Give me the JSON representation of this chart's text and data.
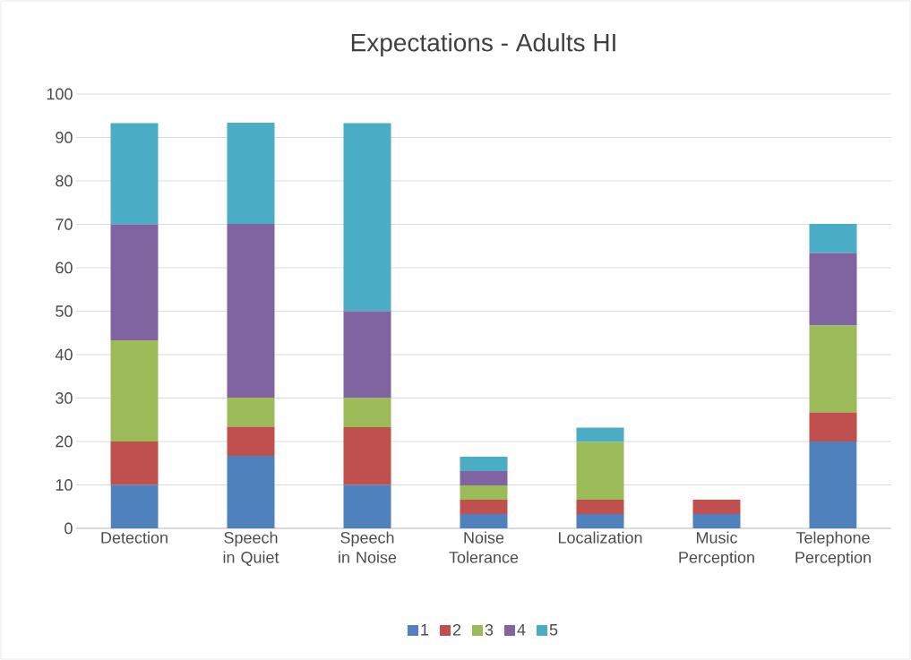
{
  "chart_data": {
    "type": "bar",
    "title": "Expectations - Adults HI",
    "stacked": true,
    "categories": [
      "Detection",
      "Speech in Quiet",
      "Speech in Noise",
      "Noise Tolerance",
      "Localization",
      "Music Perception",
      "Telephone Perception"
    ],
    "series": [
      {
        "name": "1",
        "color": "#4f81bd",
        "values": [
          10,
          16.7,
          10,
          3.3,
          3.3,
          3.3,
          20
        ]
      },
      {
        "name": "2",
        "color": "#c0504d",
        "values": [
          10,
          6.7,
          13.3,
          3.3,
          3.3,
          3.3,
          6.7
        ]
      },
      {
        "name": "3",
        "color": "#9bbb59",
        "values": [
          23.3,
          6.7,
          6.7,
          3.3,
          13.3,
          0,
          20
        ]
      },
      {
        "name": "4",
        "color": "#8064a2",
        "values": [
          26.7,
          40,
          20,
          3.3,
          0,
          0,
          16.7
        ]
      },
      {
        "name": "5",
        "color": "#4bacc6",
        "values": [
          23.3,
          23.3,
          43.3,
          3.3,
          3.3,
          0,
          6.7
        ]
      }
    ],
    "ylim": [
      0,
      100
    ],
    "yticks": [
      0,
      10,
      20,
      30,
      40,
      50,
      60,
      70,
      80,
      90,
      100
    ],
    "grid": "y",
    "legend": "bottom"
  }
}
